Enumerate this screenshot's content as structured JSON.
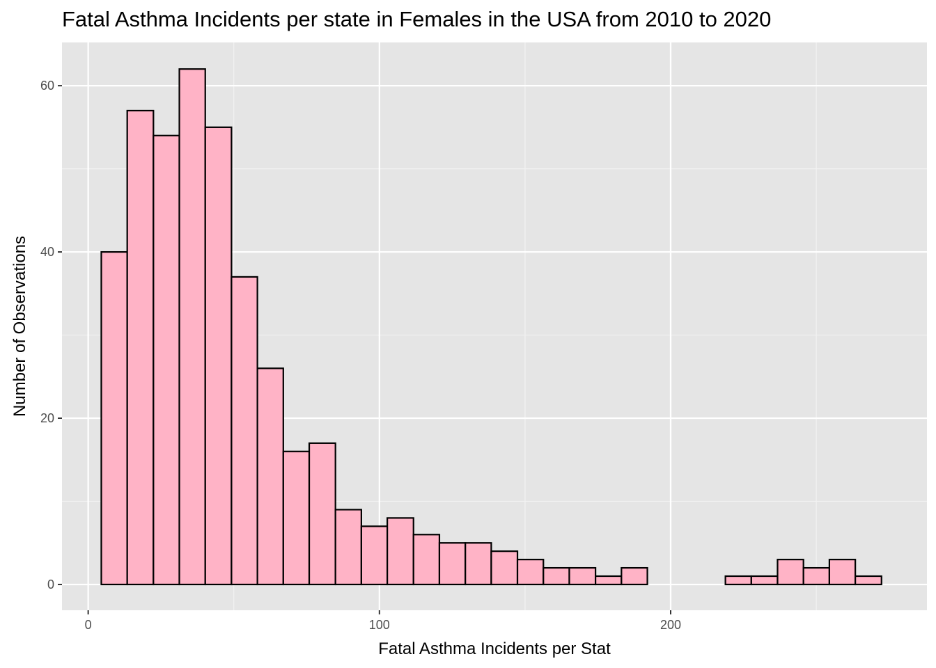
{
  "chart_data": {
    "type": "bar",
    "title": "Fatal Asthma Incidents per state in Females in the USA from 2010 to 2020",
    "xlabel": "Fatal Asthma Incidents per Stat",
    "ylabel": "Number of Observations",
    "xlim": [
      -9,
      288
    ],
    "ylim": [
      -3.1,
      65.2
    ],
    "x_ticks": [
      0,
      100,
      200
    ],
    "y_ticks": [
      0,
      20,
      40,
      60
    ],
    "bin_width": 8.93,
    "bins": [
      {
        "x0": 4.5,
        "x1": 13.4,
        "count": 40
      },
      {
        "x0": 13.4,
        "x1": 22.4,
        "count": 57
      },
      {
        "x0": 22.4,
        "x1": 31.3,
        "count": 54
      },
      {
        "x0": 31.3,
        "x1": 40.2,
        "count": 62
      },
      {
        "x0": 40.2,
        "x1": 49.2,
        "count": 55
      },
      {
        "x0": 49.2,
        "x1": 58.1,
        "count": 37
      },
      {
        "x0": 58.1,
        "x1": 67.0,
        "count": 26
      },
      {
        "x0": 67.0,
        "x1": 75.9,
        "count": 16
      },
      {
        "x0": 75.9,
        "x1": 84.9,
        "count": 17
      },
      {
        "x0": 84.9,
        "x1": 93.8,
        "count": 9
      },
      {
        "x0": 93.8,
        "x1": 102.7,
        "count": 7
      },
      {
        "x0": 102.7,
        "x1": 111.7,
        "count": 8
      },
      {
        "x0": 111.7,
        "x1": 120.6,
        "count": 6
      },
      {
        "x0": 120.6,
        "x1": 129.5,
        "count": 5
      },
      {
        "x0": 129.5,
        "x1": 138.4,
        "count": 5
      },
      {
        "x0": 138.4,
        "x1": 147.4,
        "count": 4
      },
      {
        "x0": 147.4,
        "x1": 156.3,
        "count": 3
      },
      {
        "x0": 156.3,
        "x1": 165.2,
        "count": 2
      },
      {
        "x0": 165.2,
        "x1": 174.2,
        "count": 2
      },
      {
        "x0": 174.2,
        "x1": 183.1,
        "count": 1
      },
      {
        "x0": 183.1,
        "x1": 192.0,
        "count": 2
      },
      {
        "x0": 192.0,
        "x1": 200.9,
        "count": 0
      },
      {
        "x0": 200.9,
        "x1": 209.9,
        "count": 0
      },
      {
        "x0": 209.9,
        "x1": 218.8,
        "count": 0
      },
      {
        "x0": 218.8,
        "x1": 227.7,
        "count": 1
      },
      {
        "x0": 227.7,
        "x1": 236.7,
        "count": 1
      },
      {
        "x0": 236.7,
        "x1": 245.6,
        "count": 3
      },
      {
        "x0": 245.6,
        "x1": 254.5,
        "count": 2
      },
      {
        "x0": 254.5,
        "x1": 263.4,
        "count": 3
      },
      {
        "x0": 263.4,
        "x1": 272.4,
        "count": 1
      }
    ],
    "grid": true,
    "legend": "none",
    "colors": {
      "bar_fill": "#FFB3C6",
      "bar_stroke": "#000000",
      "panel_background": "#E5E5E5",
      "grid_major": "#FFFFFF",
      "grid_minor": "#F2F2F2"
    }
  }
}
